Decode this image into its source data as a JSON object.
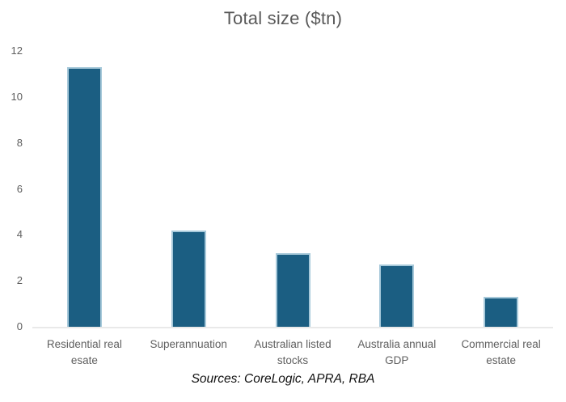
{
  "title": "Total size ($tn)",
  "source_note": "Sources: CoreLogic, APRA, RBA",
  "colors": {
    "bar_fill": "#1B5E82",
    "bar_border": "#A7C9DA",
    "axis_line": "#E9E9E9",
    "title_text": "#595959",
    "axis_text": "#5F5F5F",
    "source_text": "#111111"
  },
  "chart_data": {
    "type": "bar",
    "title": "Total size ($tn)",
    "categories": [
      "Residential real esate",
      "Superannuation",
      "Australian listed stocks",
      "Australia annual GDP",
      "Commercial real estate"
    ],
    "values": [
      11.3,
      4.2,
      3.2,
      2.7,
      1.3
    ],
    "xlabel": "",
    "ylabel": "",
    "ylim": [
      0,
      12
    ],
    "yticks": [
      0,
      2,
      4,
      6,
      8,
      10,
      12
    ],
    "grid": false,
    "legend": false,
    "bar_color": "#1B5E82",
    "source_note": "Sources: CoreLogic, APRA, RBA"
  }
}
